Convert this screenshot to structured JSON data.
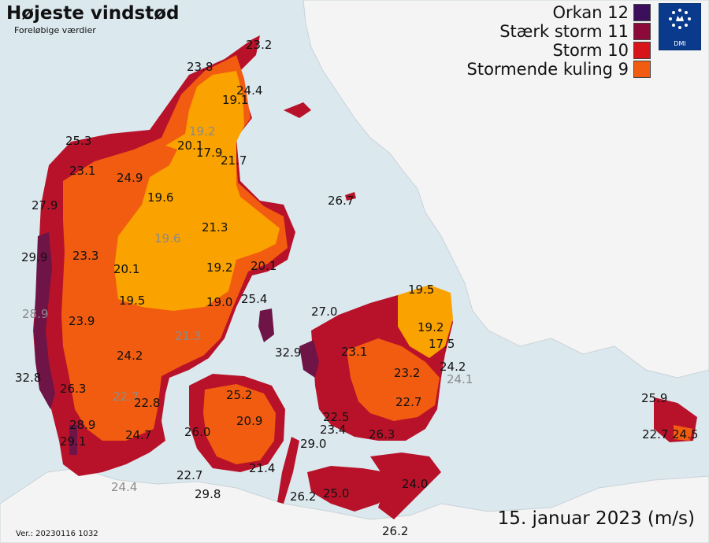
{
  "header": {
    "title": "Højeste vindstød",
    "subtitle": "Foreløbige værdier"
  },
  "legend": [
    {
      "label": "Orkan 12",
      "color": "#3b0f5c"
    },
    {
      "label": "Stærk storm 11",
      "color": "#8b0a3a"
    },
    {
      "label": "Storm 10",
      "color": "#d8141a"
    },
    {
      "label": "Stormende kuling 9",
      "color": "#f25c10"
    }
  ],
  "logo": {
    "text": "DMI",
    "icon": "crown-stars-icon"
  },
  "footer": {
    "date": "15. januar 2023 (m/s)",
    "version": "Ver.: 20230116 1032"
  },
  "colors": {
    "sea": "#dbe8ee",
    "land_neighbour": "#f4f4f4",
    "orange_light": "#f9a200",
    "kuling": "#f25c10",
    "storm": "#d8141a",
    "staerk_storm": "#8b0a3a",
    "orkan": "#3b0f5c"
  },
  "stations": [
    {
      "id": "s1",
      "value": "23.2",
      "grey": false
    },
    {
      "id": "s2",
      "value": "23.8",
      "grey": false
    },
    {
      "id": "s3",
      "value": "24.4",
      "grey": false
    },
    {
      "id": "s4",
      "value": "19.1",
      "grey": false
    },
    {
      "id": "s5",
      "value": "19.2",
      "grey": true
    },
    {
      "id": "s6",
      "value": "25.3",
      "grey": false
    },
    {
      "id": "s7",
      "value": "20.1",
      "grey": false
    },
    {
      "id": "s8",
      "value": "17.9",
      "grey": false
    },
    {
      "id": "s9",
      "value": "21.7",
      "grey": false
    },
    {
      "id": "s10",
      "value": "23.1",
      "grey": false
    },
    {
      "id": "s11",
      "value": "24.9",
      "grey": false
    },
    {
      "id": "s12",
      "value": "19.6",
      "grey": false
    },
    {
      "id": "s13",
      "value": "27.9",
      "grey": false
    },
    {
      "id": "s14",
      "value": "26.7",
      "grey": false
    },
    {
      "id": "s15",
      "value": "21.3",
      "grey": false
    },
    {
      "id": "s16",
      "value": "19.6",
      "grey": true
    },
    {
      "id": "s17",
      "value": "29.9",
      "grey": false
    },
    {
      "id": "s18",
      "value": "23.3",
      "grey": false
    },
    {
      "id": "s19",
      "value": "20.1",
      "grey": false
    },
    {
      "id": "s20",
      "value": "19.2",
      "grey": false
    },
    {
      "id": "s21",
      "value": "20.1",
      "grey": false
    },
    {
      "id": "s22",
      "value": "19.5",
      "grey": false
    },
    {
      "id": "s23",
      "value": "19.5",
      "grey": false
    },
    {
      "id": "s24",
      "value": "19.0",
      "grey": false
    },
    {
      "id": "s25",
      "value": "25.4",
      "grey": false
    },
    {
      "id": "s26",
      "value": "27.0",
      "grey": false
    },
    {
      "id": "s27",
      "value": "28.9",
      "grey": true
    },
    {
      "id": "s28",
      "value": "23.9",
      "grey": false
    },
    {
      "id": "s29",
      "value": "19.2",
      "grey": false
    },
    {
      "id": "s30",
      "value": "21.3",
      "grey": true
    },
    {
      "id": "s31",
      "value": "17.5",
      "grey": false
    },
    {
      "id": "s32",
      "value": "32.9",
      "grey": false
    },
    {
      "id": "s33",
      "value": "23.1",
      "grey": false
    },
    {
      "id": "s34",
      "value": "24.2",
      "grey": false
    },
    {
      "id": "s35",
      "value": "24.2",
      "grey": false
    },
    {
      "id": "s36",
      "value": "23.2",
      "grey": false
    },
    {
      "id": "s37",
      "value": "24.1",
      "grey": true
    },
    {
      "id": "s38",
      "value": "32.8",
      "grey": false
    },
    {
      "id": "s39",
      "value": "26.3",
      "grey": false
    },
    {
      "id": "s40",
      "value": "22.7",
      "grey": true
    },
    {
      "id": "s41",
      "value": "25.2",
      "grey": false
    },
    {
      "id": "s42",
      "value": "22.8",
      "grey": false
    },
    {
      "id": "s43",
      "value": "22.7",
      "grey": false
    },
    {
      "id": "s44",
      "value": "25.9",
      "grey": false
    },
    {
      "id": "s45",
      "value": "28.9",
      "grey": false
    },
    {
      "id": "s46",
      "value": "20.9",
      "grey": false
    },
    {
      "id": "s47",
      "value": "22.5",
      "grey": false
    },
    {
      "id": "s48",
      "value": "26.0",
      "grey": false
    },
    {
      "id": "s49",
      "value": "23.4",
      "grey": false
    },
    {
      "id": "s50",
      "value": "24.7",
      "grey": false
    },
    {
      "id": "s51",
      "value": "26.3",
      "grey": false
    },
    {
      "id": "s52",
      "value": "22.7",
      "grey": false
    },
    {
      "id": "s53",
      "value": "24.5",
      "grey": false
    },
    {
      "id": "s54",
      "value": "29.1",
      "grey": false
    },
    {
      "id": "s55",
      "value": "29.0",
      "grey": false
    },
    {
      "id": "s56",
      "value": "21.4",
      "grey": false
    },
    {
      "id": "s57",
      "value": "22.7",
      "grey": false
    },
    {
      "id": "s58",
      "value": "24.0",
      "grey": false
    },
    {
      "id": "s59",
      "value": "24.4",
      "grey": true
    },
    {
      "id": "s60",
      "value": "29.8",
      "grey": false
    },
    {
      "id": "s61",
      "value": "26.2",
      "grey": false
    },
    {
      "id": "s62",
      "value": "25.0",
      "grey": false
    },
    {
      "id": "s63",
      "value": "26.2",
      "grey": false
    }
  ]
}
